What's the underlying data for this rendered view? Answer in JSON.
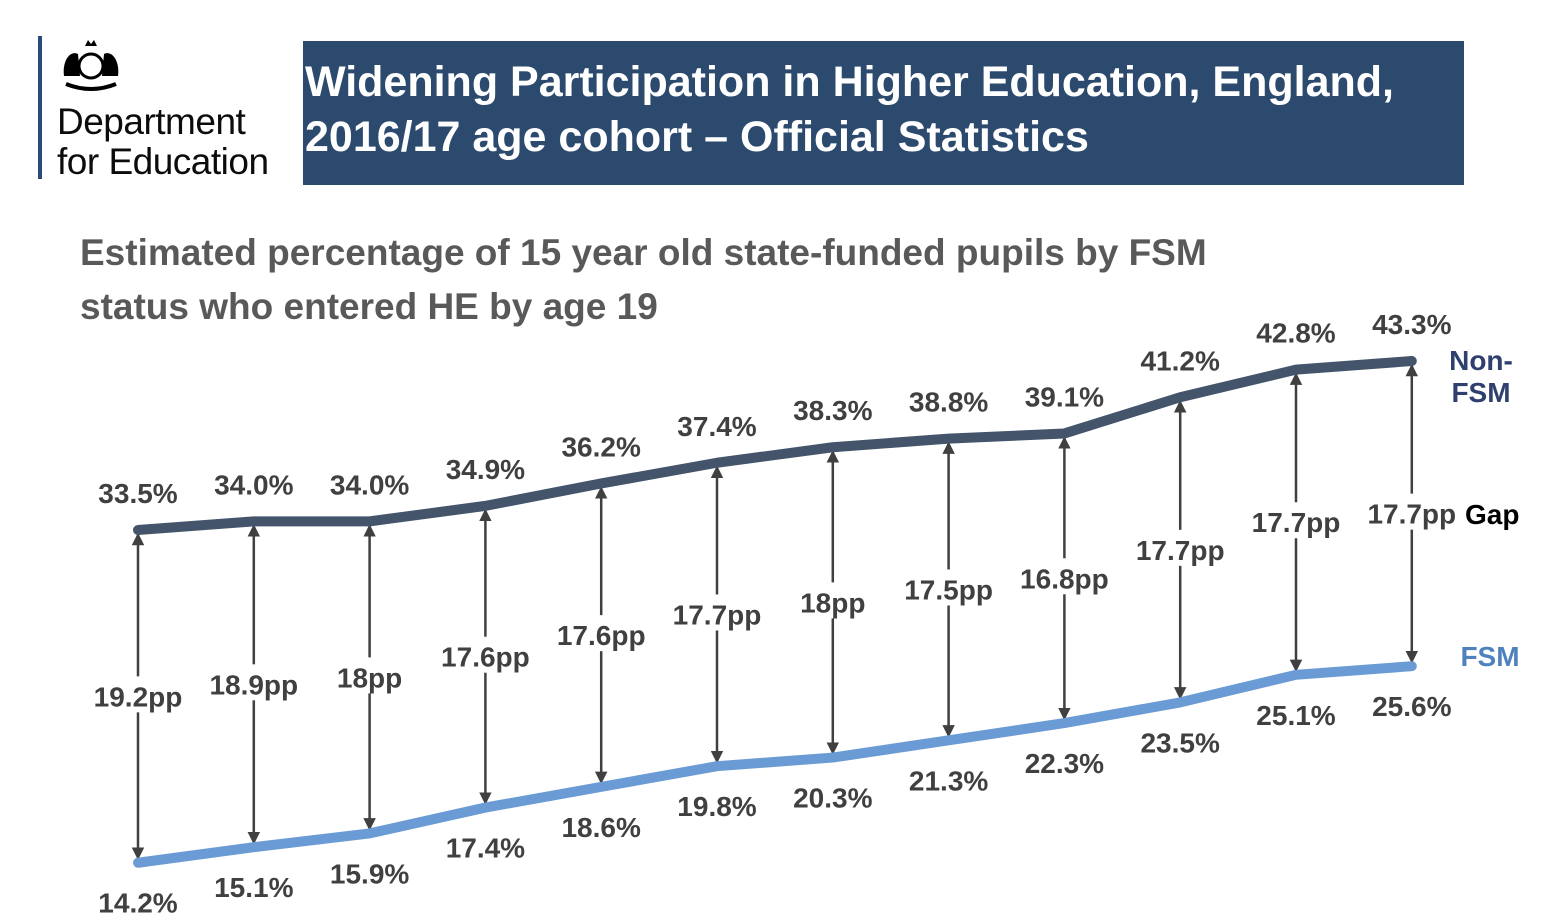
{
  "logo": {
    "line1": "Department",
    "line2": "for Education"
  },
  "banner": {
    "line1": "Widening Participation in Higher Education, England,",
    "line2": "2016/17 age cohort – Official Statistics"
  },
  "chart_data": {
    "type": "line",
    "title": "Estimated percentage of 15 year old state-funded pupils by FSM status who entered HE by age 19",
    "xlabel": "",
    "ylabel": "",
    "series": [
      {
        "name": "Non-FSM",
        "label_line1": "Non-",
        "label_line2": "FSM",
        "color": "#44546a",
        "label_color": "#2f3f6e",
        "values": [
          33.5,
          34.0,
          34.0,
          34.9,
          36.2,
          37.4,
          38.3,
          38.8,
          39.1,
          41.2,
          42.8,
          43.3
        ],
        "labels": [
          "33.5%",
          "34.0%",
          "34.0%",
          "34.9%",
          "36.2%",
          "37.4%",
          "38.3%",
          "38.8%",
          "39.1%",
          "41.2%",
          "42.8%",
          "43.3%"
        ]
      },
      {
        "name": "FSM",
        "color": "#6a9bd4",
        "label_color": "#4f81bd",
        "values": [
          14.2,
          15.1,
          15.9,
          17.4,
          18.6,
          19.8,
          20.3,
          21.3,
          22.3,
          23.5,
          25.1,
          25.6
        ],
        "labels": [
          "14.2%",
          "15.1%",
          "15.9%",
          "17.4%",
          "18.6%",
          "19.8%",
          "20.3%",
          "21.3%",
          "22.3%",
          "23.5%",
          "25.1%",
          "25.6%"
        ]
      }
    ],
    "gap": {
      "name": "Gap",
      "labels": [
        "19.2pp",
        "18.9pp",
        "18pp",
        "17.6pp",
        "17.6pp",
        "17.7pp",
        "18pp",
        "17.5pp",
        "16.8pp",
        "17.7pp",
        "17.7pp",
        "17.7pp"
      ]
    },
    "grid": false
  }
}
